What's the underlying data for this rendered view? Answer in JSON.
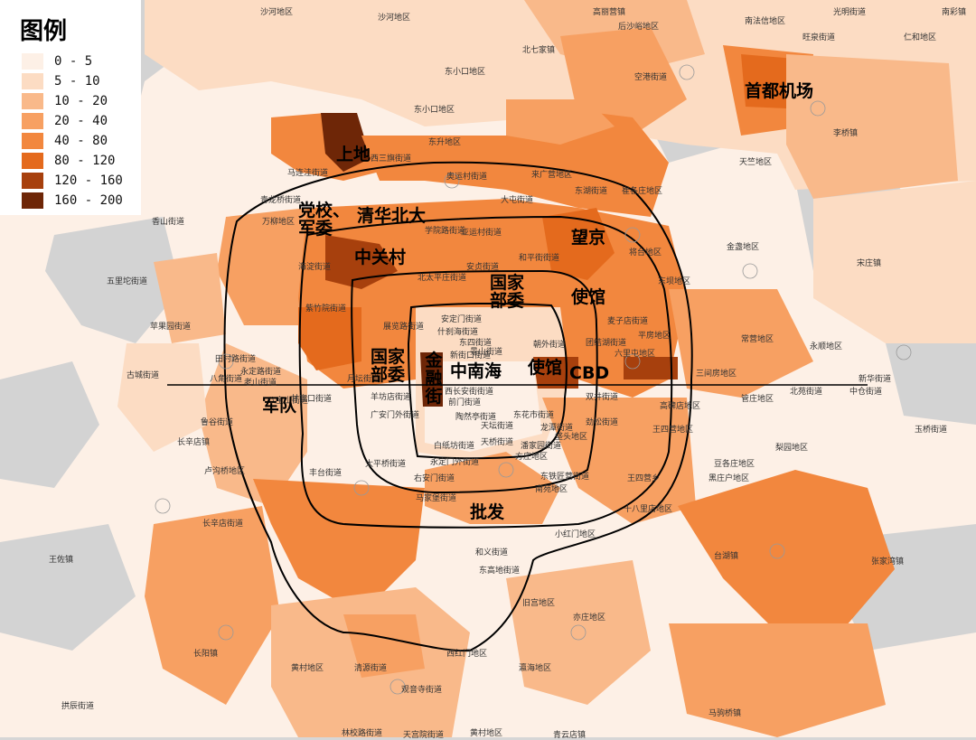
{
  "legend": {
    "title": "图例",
    "items": [
      {
        "label": "0 - 5",
        "color": "#fdf0e6"
      },
      {
        "label": "5 - 10",
        "color": "#fcdcc3"
      },
      {
        "label": "10 - 20",
        "color": "#f9b98a"
      },
      {
        "label": "20 - 40",
        "color": "#f7a062"
      },
      {
        "label": "40 - 80",
        "color": "#f2873e"
      },
      {
        "label": "80 - 120",
        "color": "#e46a1d"
      },
      {
        "label": "120 - 160",
        "color": "#a7400d"
      },
      {
        "label": "160 - 200",
        "color": "#6e2607"
      }
    ]
  },
  "colors": {
    "ring_road": "#000000",
    "no_data": "#d3d3d3",
    "background": "#d6d6d6"
  },
  "major_labels": {
    "shangdi": "上地",
    "dangxiao_junwei": "党校、\n军委",
    "qinghua_beida": "清华北大",
    "zhongguancun": "中关村",
    "wangjing": "望京",
    "shouduo_jichang": "首都机场",
    "guojia_buwei_1": "国家\n部委",
    "shiguan_1": "使馆",
    "guojia_buwei_2": "国家\n部委",
    "jinrongjie": "金融街",
    "zhongnanhai": "中南海",
    "shiguan_2": "使馆",
    "cbd": "CBD",
    "jundui": "军队",
    "pifa": "批发"
  },
  "place_names": [
    "沙河地区",
    "沙河地区",
    "北七家镇",
    "东小口地区",
    "东小口地区",
    "后沙峪地区",
    "南法信地区",
    "高丽营镇",
    "光明街道",
    "南彩镇",
    "旺泉街道",
    "仁和地区",
    "空港街道",
    "马连洼街道",
    "西三旗街道",
    "东升地区",
    "奥运村街道",
    "东湖街道",
    "崔各庄地区",
    "李桥镇",
    "天竺地区",
    "青龙桥街道",
    "万柳地区",
    "香山街道",
    "学院路街道",
    "亚运村街道",
    "大屯街道",
    "来广营地区",
    "将台地区",
    "东坝地区",
    "金盏地区",
    "宋庄镇",
    "五里坨街道",
    "海淀街道",
    "北太平庄街道",
    "安贞街道",
    "和平街街道",
    "麦子店街道",
    "平房地区",
    "常营地区",
    "永顺地区",
    "苹果园街道",
    "紫竹院街道",
    "展览路街道",
    "安定门街道",
    "什刹海街道",
    "东四街道",
    "新街口街道",
    "景山街道",
    "朝外街道",
    "团结湖街道",
    "六里屯地区",
    "古城街道",
    "八角街道",
    "田村路街道",
    "永定路街道",
    "老山街道",
    "八宝山街道",
    "甘家口街道",
    "羊坊店街道",
    "月坛街道",
    "西长安街街道",
    "前门街道",
    "东花市街道",
    "双井街道",
    "高碑店地区",
    "三间房地区",
    "管庄地区",
    "北苑街道",
    "新华街道",
    "中仓街道",
    "玉桥街道",
    "鲁谷街道",
    "长辛店镇",
    "广安门外街道",
    "陶然亭街道",
    "天坛街道",
    "龙潭街道",
    "劲松街道",
    "垡头地区",
    "王四营地区",
    "豆各庄地区",
    "黑庄户地区",
    "梨园地区",
    "丰台街道",
    "太平桥街道",
    "白纸坊街道",
    "天桥街道",
    "潘家园街道",
    "右安门街道",
    "永定门外街道",
    "方庄地区",
    "东铁匠营街道",
    "南苑地区",
    "王四营乡",
    "十八里店地区",
    "长辛店街道",
    "卢沟桥地区",
    "马家堡街道",
    "和义街道",
    "东高地街道",
    "小红门地区",
    "旧宫地区",
    "亦庄地区",
    "台湖镇",
    "张家湾镇",
    "王佐镇",
    "长阳镇",
    "黄村地区",
    "清源街道",
    "西红门地区",
    "瀛海地区",
    "观音寺街道",
    "拱辰街道",
    "林校路街道",
    "天宫院街道",
    "黄村地区",
    "青云店镇",
    "马驹桥镇"
  ]
}
